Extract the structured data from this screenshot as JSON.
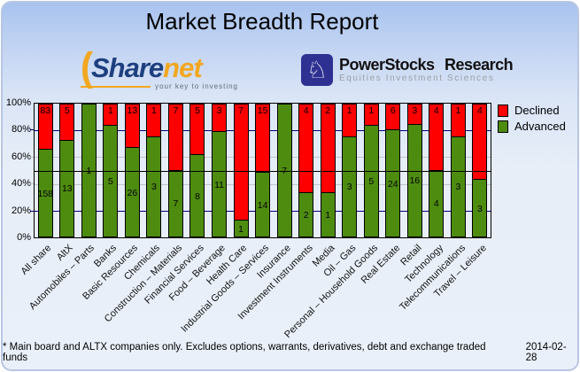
{
  "title": "Market Breadth Report",
  "logos": {
    "sharenet": {
      "arc_glyph": "(",
      "word_part1": "Share",
      "word_part2": "net",
      "tagline": "your key to investing"
    },
    "powerstocks": {
      "knight_glyph": "♘",
      "name": "PowerStocks Research",
      "subtitle": "Equities Investment Sciences"
    }
  },
  "chart_data": {
    "type": "bar",
    "stacking": "percent",
    "title": "",
    "xlabel": "",
    "ylabel": "",
    "ylim": [
      0,
      100
    ],
    "yticks": [
      0,
      20,
      40,
      60,
      80,
      100
    ],
    "ytick_suffix": "%",
    "legend_position": "right",
    "midline_percent": 50,
    "gridlines": [
      {
        "percent": 20,
        "color": "navy"
      },
      {
        "percent": 40,
        "color": "silver"
      },
      {
        "percent": 60,
        "color": "silver"
      },
      {
        "percent": 80,
        "color": "navy"
      }
    ],
    "categories": [
      "All share",
      "AltX",
      "Automobiles – Parts",
      "Banks",
      "Basic Resources",
      "Chemicals",
      "Construction – Materials",
      "Financial Services",
      "Food – Beverage",
      "Health Care",
      "Industrial Goods – Services",
      "Insurance",
      "Investment Instruments",
      "Media",
      "Oil – Gas",
      "Personal – Household Goods",
      "Real Estate",
      "Retail",
      "Technology",
      "Telecommunications",
      "Travel – Leisure"
    ],
    "series": [
      {
        "name": "Declined",
        "color": "#fe0000",
        "values": [
          83,
          5,
          0,
          1,
          13,
          1,
          7,
          5,
          3,
          7,
          15,
          0,
          4,
          2,
          1,
          1,
          6,
          3,
          4,
          1,
          4
        ]
      },
      {
        "name": "Advanced",
        "color": "#4e8c10",
        "values": [
          158,
          13,
          1,
          5,
          26,
          3,
          7,
          8,
          11,
          1,
          14,
          7,
          2,
          1,
          3,
          5,
          24,
          16,
          4,
          3,
          3
        ]
      }
    ]
  },
  "footer": {
    "note": "* Main board and ALTX companies only. Excludes options, warrants, derivatives, debt and exchange traded funds",
    "date": "2014-02-28"
  },
  "colors": {
    "declined": "#fe0000",
    "advanced": "#4e8c10",
    "grid_navy": "#000080",
    "grid_silver": "#c4c4c4",
    "panel_top": "#a8c3ef",
    "panel_bottom": "#eaf0f9"
  }
}
